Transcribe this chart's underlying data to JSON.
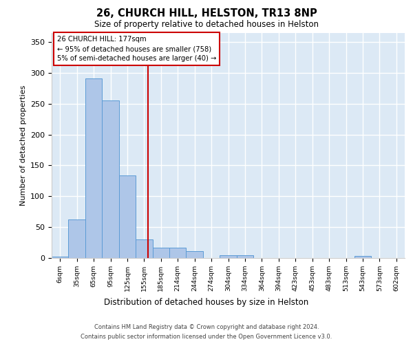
{
  "title1": "26, CHURCH HILL, HELSTON, TR13 8NP",
  "title2": "Size of property relative to detached houses in Helston",
  "xlabel": "Distribution of detached houses by size in Helston",
  "ylabel": "Number of detached properties",
  "bin_labels": [
    "6sqm",
    "35sqm",
    "65sqm",
    "95sqm",
    "125sqm",
    "155sqm",
    "185sqm",
    "214sqm",
    "244sqm",
    "274sqm",
    "304sqm",
    "334sqm",
    "364sqm",
    "394sqm",
    "423sqm",
    "453sqm",
    "483sqm",
    "513sqm",
    "543sqm",
    "573sqm",
    "602sqm"
  ],
  "bar_heights": [
    2,
    62,
    291,
    255,
    134,
    30,
    17,
    17,
    11,
    0,
    5,
    5,
    0,
    0,
    0,
    0,
    0,
    0,
    3,
    0,
    0
  ],
  "bar_color": "#aec6e8",
  "bar_edgecolor": "#5b9bd5",
  "annotation_line1": "26 CHURCH HILL: 177sqm",
  "annotation_line2": "← 95% of detached houses are smaller (758)",
  "annotation_line3": "5% of semi-detached houses are larger (40) →",
  "vline_color": "#cc0000",
  "annotation_box_color": "#cc0000",
  "ylim": [
    0,
    365
  ],
  "yticks": [
    0,
    50,
    100,
    150,
    200,
    250,
    300,
    350
  ],
  "background_color": "#dce9f5",
  "grid_color": "#ffffff",
  "footer_line1": "Contains HM Land Registry data © Crown copyright and database right 2024.",
  "footer_line2": "Contains public sector information licensed under the Open Government Licence v3.0."
}
